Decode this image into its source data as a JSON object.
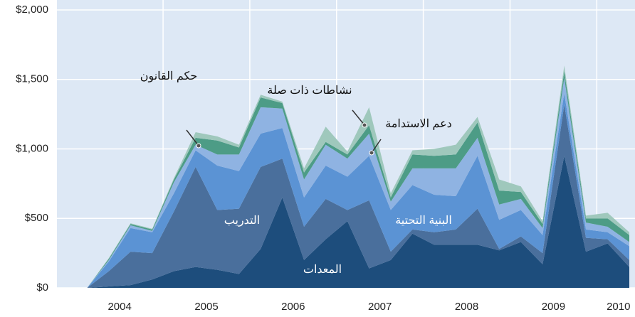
{
  "chart_data": {
    "type": "stacked-area",
    "categories": [
      null,
      null,
      null,
      "2004",
      null,
      null,
      null,
      "2005",
      null,
      null,
      null,
      "2006",
      null,
      null,
      null,
      "2007",
      null,
      null,
      null,
      "2008",
      null,
      null,
      null,
      "2009",
      null,
      null,
      "2010"
    ],
    "series": [
      {
        "name": "المعدات",
        "color": "#1d4d7c",
        "values": [
          0,
          0,
          10,
          20,
          60,
          120,
          150,
          130,
          100,
          280,
          650,
          200,
          350,
          480,
          140,
          200,
          390,
          310,
          310,
          310,
          270,
          330,
          170,
          950,
          260,
          320,
          150
        ]
      },
      {
        "name": "التدريب",
        "color": "#4a6f9c",
        "values": [
          0,
          0,
          110,
          240,
          190,
          430,
          720,
          430,
          470,
          590,
          280,
          240,
          290,
          80,
          490,
          60,
          30,
          90,
          110,
          260,
          10,
          40,
          80,
          370,
          100,
          30,
          50
        ]
      },
      {
        "name": "البنية التحتية",
        "color": "#5b93d4",
        "values": [
          0,
          0,
          70,
          170,
          150,
          130,
          120,
          320,
          270,
          240,
          220,
          210,
          240,
          240,
          320,
          300,
          320,
          270,
          240,
          380,
          210,
          190,
          130,
          80,
          60,
          50,
          100
        ]
      },
      {
        "name": "دعم الاستدامة",
        "color": "#8fb3e2",
        "values": [
          0,
          0,
          10,
          20,
          10,
          80,
          40,
          80,
          120,
          190,
          140,
          130,
          150,
          130,
          160,
          60,
          120,
          190,
          200,
          130,
          110,
          80,
          50,
          110,
          50,
          40,
          30
        ]
      },
      {
        "name": "حكم القانون",
        "color": "#4d9c86",
        "values": [
          0,
          0,
          10,
          10,
          10,
          20,
          50,
          100,
          50,
          70,
          40,
          50,
          20,
          30,
          60,
          30,
          100,
          90,
          100,
          110,
          100,
          50,
          30,
          50,
          30,
          60,
          50
        ]
      },
      {
        "name": "نشاطات ذات صلة",
        "color": "#9fc8bc",
        "values": [
          0,
          0,
          5,
          5,
          5,
          10,
          40,
          30,
          20,
          20,
          10,
          30,
          110,
          20,
          130,
          30,
          30,
          50,
          70,
          40,
          80,
          40,
          20,
          40,
          20,
          40,
          20
        ]
      }
    ],
    "ylim": [
      0,
      2000
    ],
    "yticks": [
      {
        "value": 0,
        "label": "$0"
      },
      {
        "value": 500,
        "label": "$500"
      },
      {
        "value": 1000,
        "label": "$1,000"
      },
      {
        "value": 1500,
        "label": "$1,500"
      },
      {
        "value": 2000,
        "label": "$2,000"
      }
    ],
    "grid": true
  }
}
